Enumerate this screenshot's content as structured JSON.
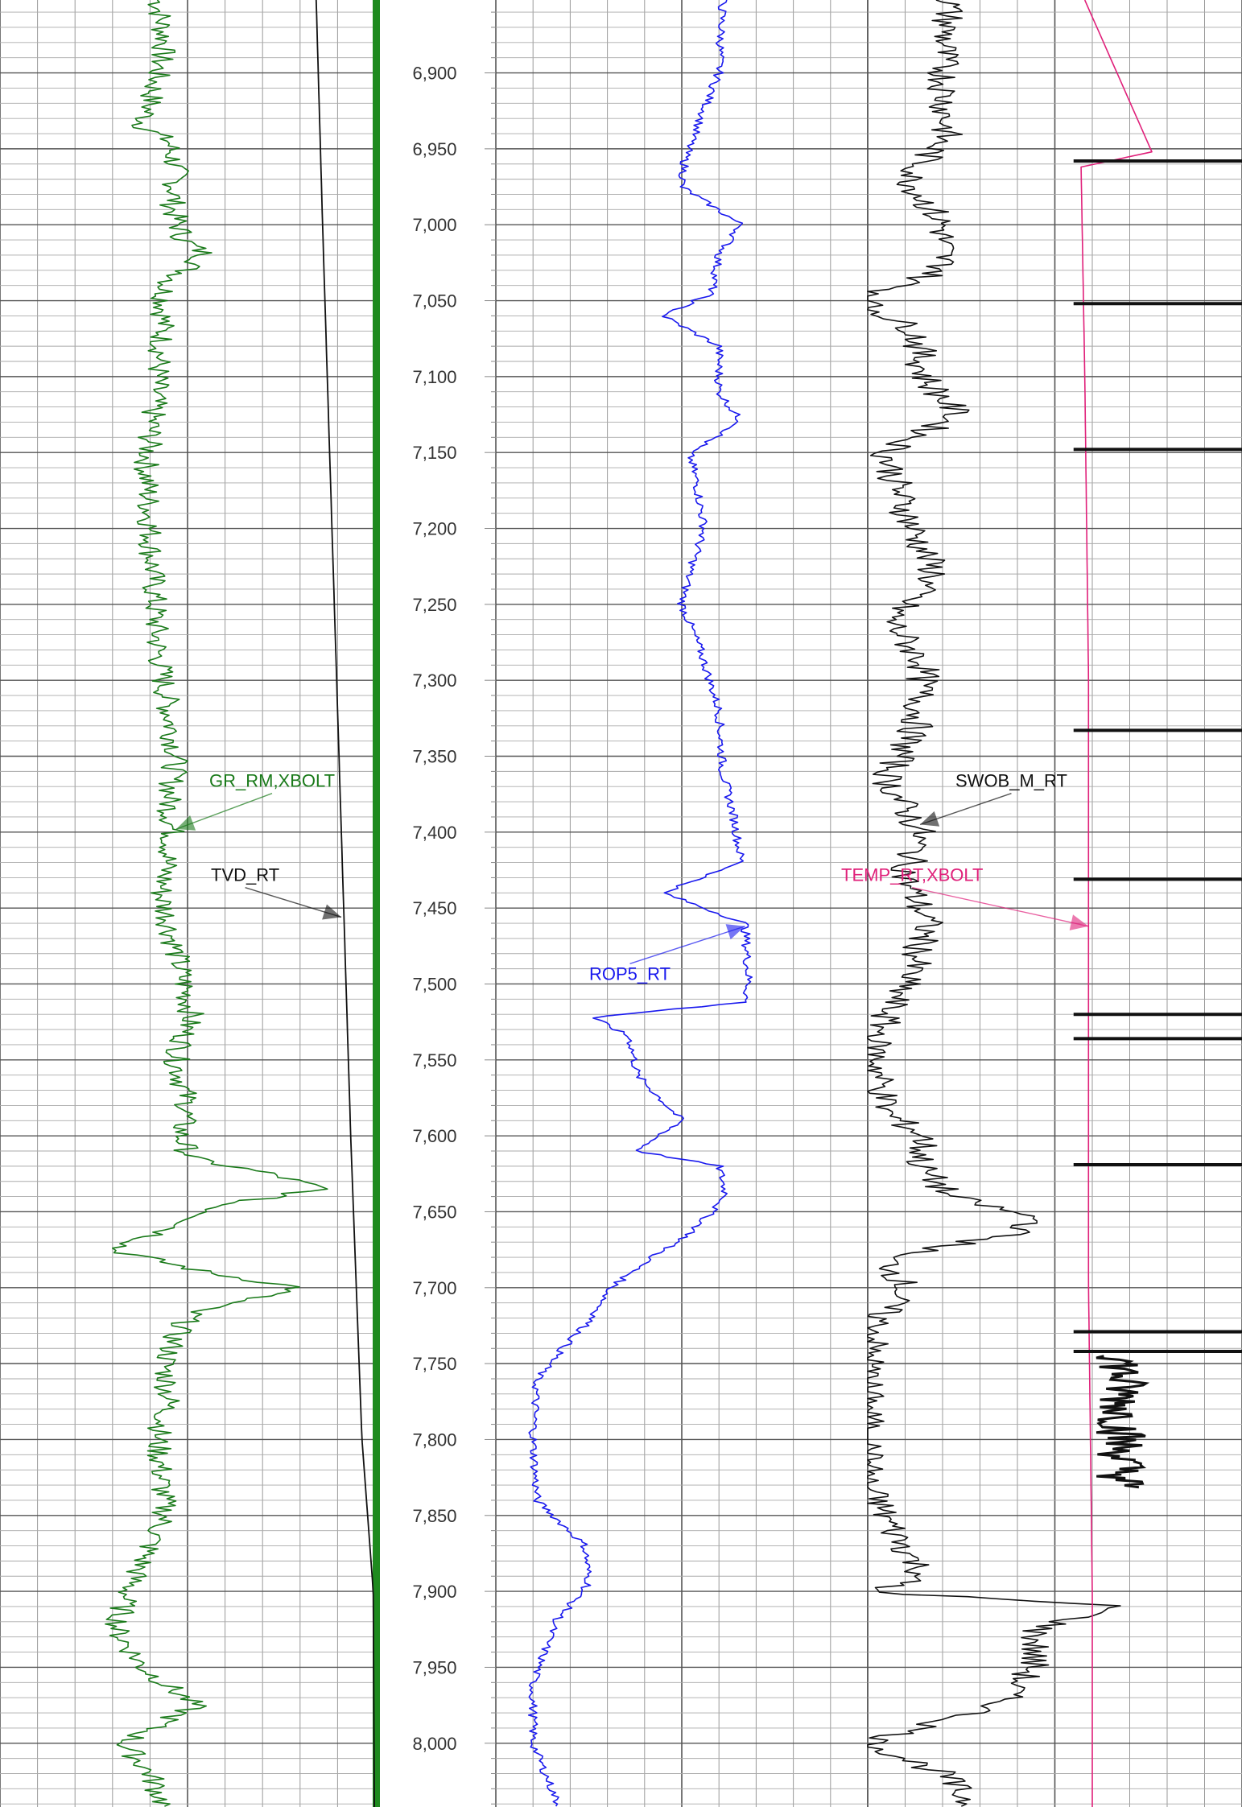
{
  "chart_data": {
    "type": "line",
    "title": "",
    "depth_axis": {
      "range": [
        6852,
        8042
      ],
      "ticks": [
        6900,
        6950,
        7000,
        7050,
        7100,
        7150,
        7200,
        7250,
        7300,
        7350,
        7400,
        7450,
        7500,
        7550,
        7600,
        7650,
        7700,
        7750,
        7800,
        7850,
        7900,
        7950,
        8000
      ],
      "tick_labels": [
        "6,900",
        "6,950",
        "7,000",
        "7,050",
        "7,100",
        "7,150",
        "7,200",
        "7,250",
        "7,300",
        "7,350",
        "7,400",
        "7,450",
        "7,500",
        "7,550",
        "7,600",
        "7,650",
        "7,700",
        "7,750",
        "7,800",
        "7,850",
        "7,900",
        "7,950",
        "8,000"
      ],
      "major_every": 50,
      "minor_every": 10
    },
    "grid": true,
    "tracks": [
      {
        "name": "track-1",
        "series": [
          {
            "name": "GR_RM,XBOLT",
            "color": "#1a7a1a",
            "label_depth": 7366,
            "arrow_depth": 7398,
            "depth": [
              6852,
              6880,
              6920,
              6935,
              6945,
              6965,
              6990,
              7010,
              7020,
              7040,
              7080,
              7120,
              7160,
              7200,
              7240,
              7280,
              7320,
              7350,
              7380,
              7400,
              7440,
              7480,
              7520,
              7550,
              7580,
              7600,
              7615,
              7625,
              7635,
              7645,
              7655,
              7665,
              7675,
              7690,
              7700,
              7715,
              7730,
              7750,
              7775,
              7800,
              7825,
              7850,
              7875,
              7900,
              7925,
              7950,
              7975,
              8000,
              8020,
              8042
            ],
            "value": [
              0.42,
              0.44,
              0.4,
              0.38,
              0.45,
              0.47,
              0.46,
              0.49,
              0.55,
              0.44,
              0.43,
              0.41,
              0.39,
              0.4,
              0.41,
              0.42,
              0.45,
              0.47,
              0.45,
              0.46,
              0.43,
              0.47,
              0.51,
              0.47,
              0.5,
              0.48,
              0.51,
              0.72,
              0.86,
              0.6,
              0.52,
              0.42,
              0.3,
              0.55,
              0.8,
              0.52,
              0.47,
              0.44,
              0.45,
              0.42,
              0.43,
              0.44,
              0.39,
              0.34,
              0.31,
              0.38,
              0.52,
              0.33,
              0.4,
              0.44
            ]
          },
          {
            "name": "TVD_RT",
            "color": "#111111",
            "label_depth": 7428,
            "arrow_depth": 7456,
            "depth": [
              6852,
              7000,
              7200,
              7400,
              7600,
              7800,
              7900,
              8042
            ],
            "value": [
              0.843,
              0.86,
              0.885,
              0.91,
              0.935,
              0.965,
              0.995,
              0.998
            ]
          }
        ]
      },
      {
        "name": "track-2",
        "series": [
          {
            "name": "ROP5_RT",
            "color": "#1a1aee",
            "label_depth": 7493,
            "arrow_depth": 7462,
            "depth": [
              6852,
              6900,
              6955,
              6975,
              7000,
              7020,
              7045,
              7060,
              7080,
              7110,
              7130,
              7150,
              7170,
              7200,
              7230,
              7250,
              7280,
              7320,
              7360,
              7390,
              7420,
              7440,
              7460,
              7500,
              7512,
              7522,
              7535,
              7560,
              7590,
              7610,
              7620,
              7640,
              7665,
              7680,
              7700,
              7720,
              7740,
              7760,
              7800,
              7840,
              7870,
              7895,
              7920,
              7960,
              8000,
              8042
            ],
            "value": [
              0.61,
              0.6,
              0.51,
              0.5,
              0.66,
              0.6,
              0.58,
              0.45,
              0.6,
              0.6,
              0.66,
              0.52,
              0.54,
              0.56,
              0.52,
              0.5,
              0.55,
              0.6,
              0.61,
              0.64,
              0.66,
              0.45,
              0.67,
              0.68,
              0.67,
              0.26,
              0.36,
              0.38,
              0.5,
              0.38,
              0.6,
              0.62,
              0.52,
              0.42,
              0.31,
              0.26,
              0.18,
              0.11,
              0.1,
              0.11,
              0.24,
              0.25,
              0.16,
              0.1,
              0.1,
              0.17
            ]
          }
        ]
      },
      {
        "name": "track-3",
        "series": [
          {
            "name": "SWOB_M_RT",
            "color": "#111111",
            "label_depth": 7366,
            "arrow_depth": 7395,
            "depth": [
              6852,
              6890,
              6940,
              6970,
              7000,
              7030,
              7048,
              7053,
              7070,
              7100,
              7125,
              7150,
              7175,
              7200,
              7230,
              7260,
              7290,
              7330,
              7365,
              7400,
              7430,
              7460,
              7490,
              7520,
              7540,
              7560,
              7585,
              7600,
              7620,
              7640,
              7655,
              7665,
              7680,
              7700,
              7720,
              7740,
              7760,
              7830,
              7860,
              7890,
              7900,
              7910,
              7925,
              7950,
              7975,
              8000,
              8020,
              8042
            ],
            "value": [
              0.22,
              0.2,
              0.21,
              0.11,
              0.2,
              0.2,
              0.0,
              0.0,
              0.13,
              0.15,
              0.24,
              0.05,
              0.08,
              0.12,
              0.18,
              0.06,
              0.15,
              0.13,
              0.05,
              0.14,
              0.1,
              0.16,
              0.12,
              0.05,
              0.02,
              0.03,
              0.05,
              0.15,
              0.14,
              0.22,
              0.46,
              0.38,
              0.05,
              0.1,
              0.03,
              0.01,
              0.0,
              0.0,
              0.07,
              0.15,
              0.0,
              0.67,
              0.45,
              0.44,
              0.35,
              0.0,
              0.2,
              0.28
            ]
          },
          {
            "name": "TEMP_RT,XBOLT",
            "color": "#e0207a",
            "label_depth": 7428,
            "arrow_depth": 7462,
            "depth": [
              6852,
              6958,
              6960,
              7100,
              7300,
              7500,
              7700,
              7900,
              8042
            ],
            "value": [
              0.58,
              0.77,
              0.57,
              0.58,
              0.59,
              0.59,
              0.59,
              0.6,
              0.6
            ]
          }
        ]
      }
    ]
  }
}
